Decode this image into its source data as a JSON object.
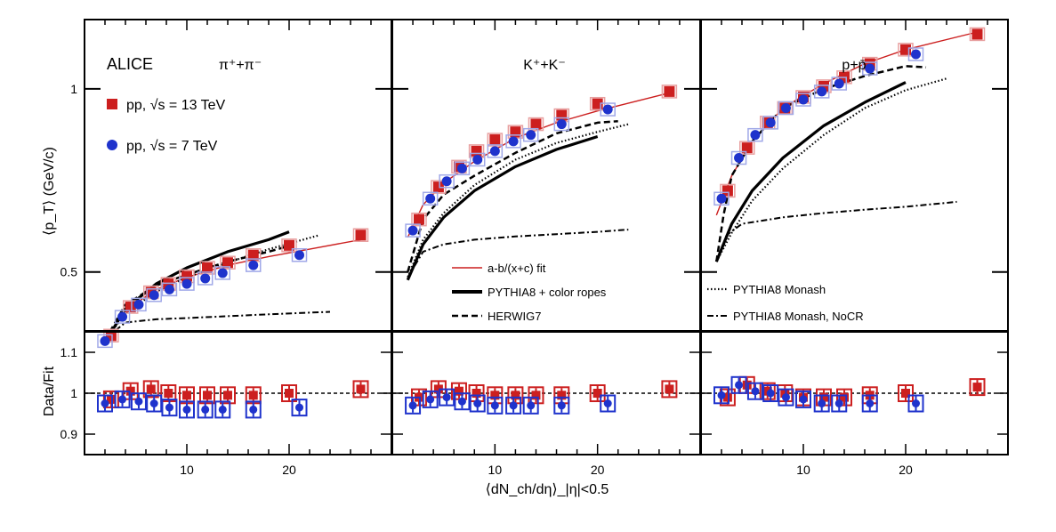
{
  "figure": {
    "experiment": "ALICE",
    "y_label_top": "⟨p_T⟩ (GeV/c)",
    "y_label_bottom": "Data/Fit",
    "x_label": "⟨dN_ch/dη⟩_|η|<0.5"
  },
  "legend": {
    "data": [
      {
        "name": "pp, √s = 13 TeV",
        "marker": "square",
        "color": "#cc1f1f"
      },
      {
        "name": "pp, √s = 7 TeV",
        "marker": "circle",
        "color": "#1f33cc"
      }
    ],
    "models": [
      {
        "name": "a-b/(x+c) fit",
        "style": "fit"
      },
      {
        "name": "PYTHIA8 + color ropes",
        "style": "thick"
      },
      {
        "name": "HERWIG7",
        "style": "dashed"
      },
      {
        "name": "PYTHIA8 Monash",
        "style": "dotted"
      },
      {
        "name": "PYTHIA8 Monash, NoCR",
        "style": "dashdot"
      }
    ]
  },
  "colors": {
    "red": "#cc1f1f",
    "blue": "#1f33cc",
    "lightred": "#e8a0a0",
    "lightblue": "#a0a8e8"
  },
  "chart_data": [
    {
      "type": "scatter",
      "title": "π⁺+π⁻",
      "xlim": [
        0,
        30
      ],
      "ylim": [
        0.4,
        1.3
      ],
      "ylog": true,
      "ratio_ylim": [
        0.85,
        1.15
      ],
      "series": [
        {
          "name": "pp, √s = 13 TeV",
          "x": [
            2.6,
            4.5,
            6.5,
            8.2,
            10.0,
            12.0,
            14.0,
            16.5,
            20.0,
            27.0
          ],
          "y": [
            0.393,
            0.438,
            0.463,
            0.478,
            0.492,
            0.508,
            0.518,
            0.533,
            0.553,
            0.575
          ],
          "ratio": [
            0.985,
            1.005,
            1.01,
            1.0,
            0.995,
            0.995,
            0.995,
            0.995,
            1.0,
            1.01
          ]
        },
        {
          "name": "pp, √s = 7 TeV",
          "x": [
            2.0,
            3.7,
            5.3,
            6.8,
            8.3,
            10.0,
            11.8,
            13.5,
            16.5,
            21.0
          ],
          "y": [
            0.385,
            0.422,
            0.442,
            0.458,
            0.468,
            0.478,
            0.488,
            0.498,
            0.513,
            0.533
          ],
          "ratio": [
            0.975,
            0.985,
            0.98,
            0.975,
            0.965,
            0.96,
            0.96,
            0.96,
            0.96,
            0.965
          ]
        }
      ],
      "models": {
        "fit": {
          "x": [
            2.0,
            4,
            7,
            10,
            14,
            18,
            22,
            27
          ],
          "y": [
            0.383,
            0.432,
            0.468,
            0.49,
            0.513,
            0.53,
            0.545,
            0.565
          ]
        },
        "thick": {
          "x": [
            2.0,
            4,
            7,
            10,
            14,
            18,
            20
          ],
          "y": [
            0.383,
            0.435,
            0.478,
            0.508,
            0.54,
            0.565,
            0.582
          ]
        },
        "dashed": {
          "x": [
            2.0,
            4,
            7,
            10,
            14,
            18,
            20
          ],
          "y": [
            0.386,
            0.442,
            0.475,
            0.495,
            0.52,
            0.54,
            0.552
          ]
        },
        "dotted": {
          "x": [
            2.0,
            4,
            7,
            10,
            14,
            18,
            23
          ],
          "y": [
            0.385,
            0.428,
            0.464,
            0.49,
            0.518,
            0.545,
            0.575
          ]
        },
        "dashdot": {
          "x": [
            2.0,
            4,
            7,
            10,
            14,
            18,
            24
          ],
          "y": [
            0.388,
            0.413,
            0.418,
            0.42,
            0.423,
            0.426,
            0.43
          ]
        }
      }
    },
    {
      "type": "scatter",
      "title": "K⁺+K⁻",
      "xlim": [
        0,
        30
      ],
      "ylim": [
        0.4,
        1.3
      ],
      "ylog": true,
      "ratio_ylim": [
        0.85,
        1.15
      ],
      "series": [
        {
          "name": "pp, √s = 13 TeV",
          "x": [
            2.6,
            4.5,
            6.5,
            8.2,
            10.0,
            12.0,
            14.0,
            16.5,
            20.0,
            27.0
          ],
          "y": [
            0.61,
            0.69,
            0.745,
            0.79,
            0.825,
            0.85,
            0.875,
            0.905,
            0.945,
            0.99
          ],
          "ratio": [
            0.99,
            1.01,
            1.005,
            1.0,
            0.995,
            0.995,
            0.995,
            0.995,
            1.0,
            1.01
          ]
        },
        {
          "name": "pp, √s = 7 TeV",
          "x": [
            2.0,
            3.7,
            5.3,
            6.8,
            8.3,
            10.0,
            11.8,
            13.5,
            16.5,
            21.0
          ],
          "y": [
            0.585,
            0.66,
            0.705,
            0.74,
            0.765,
            0.79,
            0.82,
            0.84,
            0.875,
            0.925
          ],
          "ratio": [
            0.97,
            0.985,
            0.99,
            0.98,
            0.975,
            0.97,
            0.97,
            0.97,
            0.97,
            0.975
          ]
        }
      ],
      "models": {
        "fit": {
          "x": [
            1.5,
            3,
            5,
            8,
            12,
            16,
            20,
            27
          ],
          "y": [
            0.57,
            0.645,
            0.7,
            0.76,
            0.83,
            0.88,
            0.92,
            0.985
          ]
        },
        "thick": {
          "x": [
            1.5,
            3,
            5,
            8,
            12,
            16,
            20
          ],
          "y": [
            0.485,
            0.555,
            0.615,
            0.68,
            0.745,
            0.795,
            0.835
          ]
        },
        "dashed": {
          "x": [
            1.5,
            3,
            5,
            8,
            12,
            16,
            20,
            22
          ],
          "y": [
            0.5,
            0.61,
            0.67,
            0.72,
            0.785,
            0.845,
            0.88,
            0.885
          ]
        },
        "dotted": {
          "x": [
            1.5,
            3,
            5,
            8,
            12,
            16,
            20,
            23
          ],
          "y": [
            0.49,
            0.565,
            0.625,
            0.695,
            0.765,
            0.815,
            0.85,
            0.875
          ]
        },
        "dashdot": {
          "x": [
            1.5,
            3,
            5,
            8,
            12,
            16,
            20,
            23
          ],
          "y": [
            0.49,
            0.54,
            0.555,
            0.565,
            0.572,
            0.577,
            0.582,
            0.587
          ]
        }
      }
    },
    {
      "type": "scatter",
      "title": "p+p̄",
      "xlim": [
        0,
        30
      ],
      "ylim": [
        0.4,
        1.3
      ],
      "ylog": true,
      "ratio_ylim": [
        0.85,
        1.15
      ],
      "series": [
        {
          "name": "pp, √s = 13 TeV",
          "x": [
            2.6,
            4.5,
            6.5,
            8.2,
            10.0,
            12.0,
            14.0,
            16.5,
            20.0,
            27.0
          ],
          "y": [
            0.68,
            0.8,
            0.88,
            0.93,
            0.97,
            1.01,
            1.045,
            1.1,
            1.16,
            1.23
          ],
          "ratio": [
            0.99,
            1.02,
            1.005,
            1.0,
            0.99,
            0.99,
            0.99,
            0.995,
            1.0,
            1.015
          ]
        },
        {
          "name": "pp, √s = 7 TeV",
          "x": [
            2.0,
            3.7,
            5.3,
            6.8,
            8.3,
            10.0,
            11.8,
            13.5,
            16.5,
            21.0
          ],
          "y": [
            0.66,
            0.77,
            0.84,
            0.88,
            0.93,
            0.96,
            0.99,
            1.02,
            1.08,
            1.14
          ],
          "ratio": [
            0.995,
            1.02,
            1.005,
            1.0,
            0.99,
            0.985,
            0.975,
            0.975,
            0.975,
            0.975
          ]
        }
      ],
      "models": {
        "fit": {
          "x": [
            1.5,
            3,
            5,
            8,
            12,
            16,
            20,
            27
          ],
          "y": [
            0.62,
            0.72,
            0.82,
            0.93,
            1.02,
            1.1,
            1.16,
            1.24
          ]
        },
        "thick": {
          "x": [
            1.5,
            3,
            5,
            8,
            12,
            16,
            20
          ],
          "y": [
            0.52,
            0.6,
            0.68,
            0.77,
            0.87,
            0.95,
            1.025
          ]
        },
        "dashed": {
          "x": [
            1.5,
            2.2,
            3,
            5,
            8,
            12,
            16,
            20,
            22
          ],
          "y": [
            0.52,
            0.62,
            0.72,
            0.82,
            0.93,
            1.0,
            1.05,
            1.09,
            1.085
          ]
        },
        "dotted": {
          "x": [
            1.5,
            3,
            5,
            8,
            12,
            16,
            20,
            24
          ],
          "y": [
            0.52,
            0.58,
            0.655,
            0.74,
            0.84,
            0.93,
            0.995,
            1.04
          ]
        },
        "dashdot": {
          "x": [
            1.5,
            2.5,
            4,
            8,
            12,
            16,
            20,
            25
          ],
          "y": [
            0.52,
            0.575,
            0.6,
            0.615,
            0.625,
            0.633,
            0.64,
            0.652
          ]
        }
      }
    }
  ]
}
